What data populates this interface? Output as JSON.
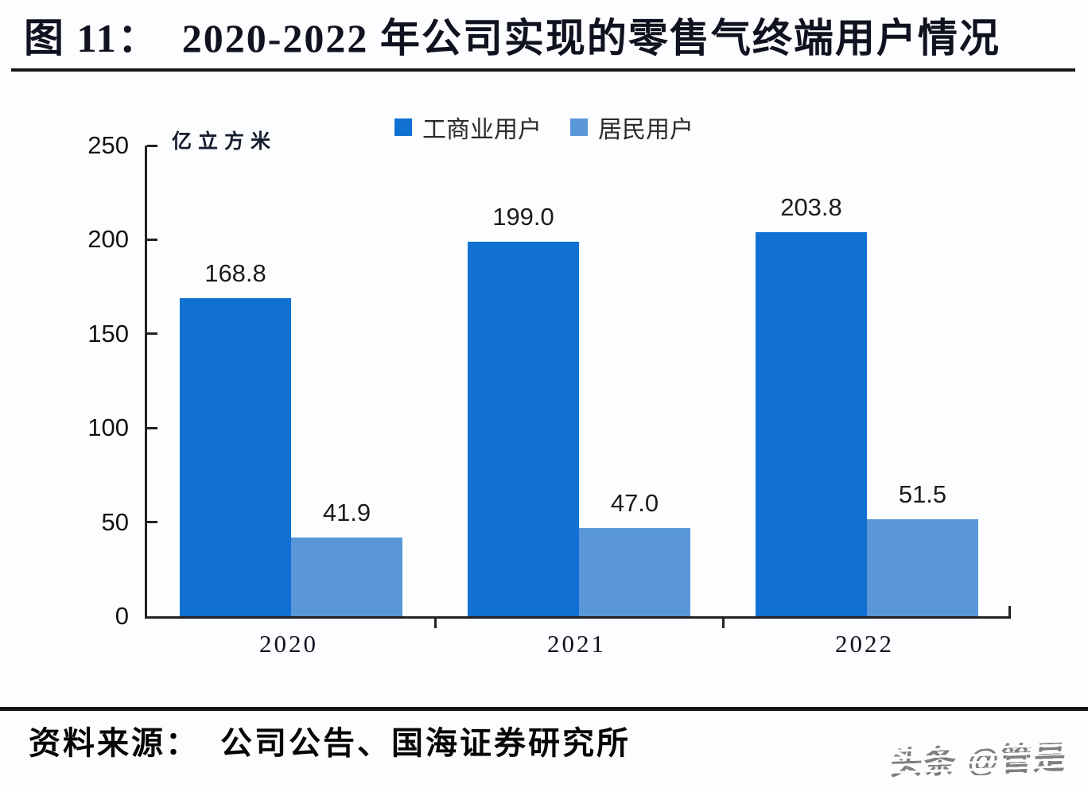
{
  "page": {
    "title": "图 11：  2020-2022 年公司实现的零售气终端用户情况",
    "source_label": "资料来源：  公司公告、国海证券研究所",
    "watermark": "头条 @管是"
  },
  "chart_data": {
    "type": "bar",
    "title": "2020-2022 年公司实现的零售气终端用户情况",
    "unit_label": "亿立方米",
    "categories": [
      "2020",
      "2021",
      "2022"
    ],
    "series": [
      {
        "name": "工商业用户",
        "color": "#1071d3",
        "values": [
          168.8,
          199.0,
          203.8
        ]
      },
      {
        "name": "居民用户",
        "color": "#5a97d8",
        "values": [
          41.9,
          47.0,
          51.5
        ]
      }
    ],
    "ylabel": "亿立方米",
    "ylim": [
      0,
      250
    ],
    "yticks": [
      0,
      50,
      100,
      150,
      200,
      250
    ],
    "grid": false,
    "legend_position": "top",
    "value_labels": "one_decimal"
  }
}
